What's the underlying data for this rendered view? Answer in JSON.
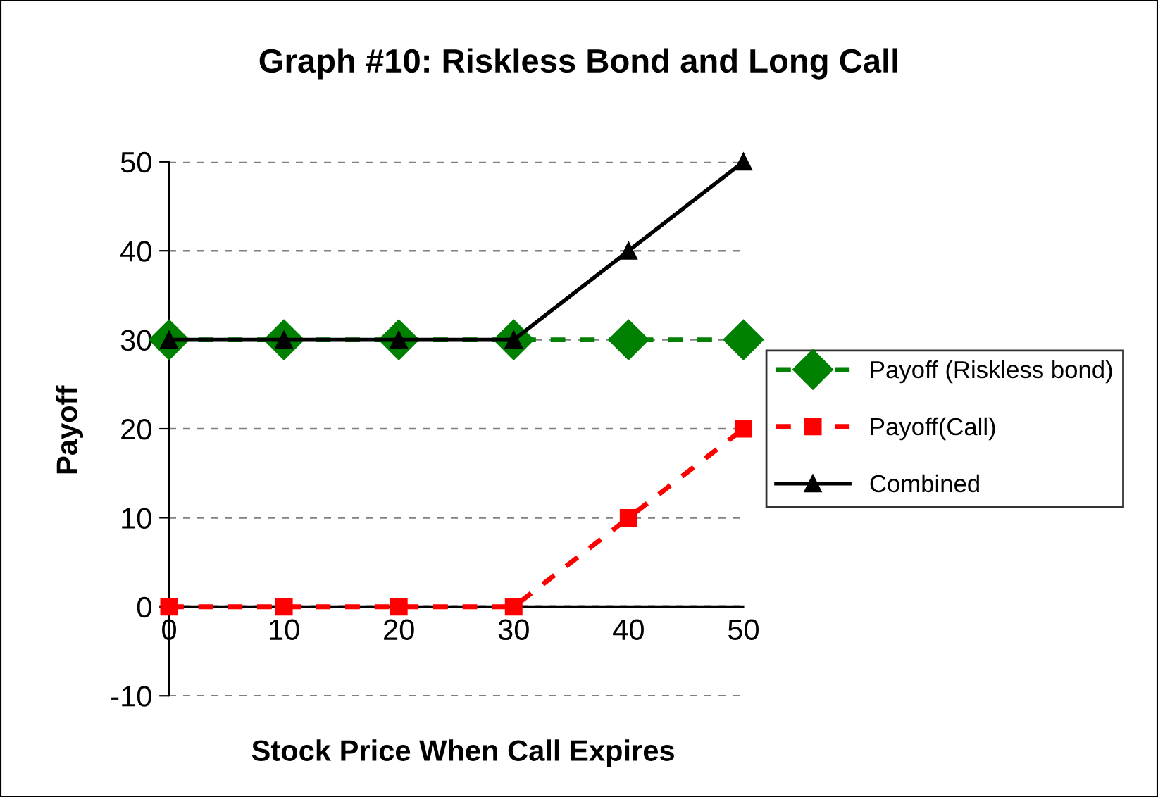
{
  "chart_data": {
    "type": "line",
    "title": "Graph #10: Riskless Bond and Long Call",
    "xlabel": "Stock Price When Call Expires",
    "ylabel": "Payoff",
    "categories": [
      "0",
      "10",
      "20",
      "30",
      "40",
      "50"
    ],
    "series": [
      {
        "name": "Payoff (Riskless bond)",
        "color": "#008000",
        "values": [
          30,
          30,
          30,
          30,
          30,
          30
        ],
        "marker": "diamond",
        "line_style": "dashed"
      },
      {
        "name": "Payoff(Call)",
        "color": "#ff0000",
        "values": [
          0,
          0,
          0,
          0,
          10,
          20
        ],
        "marker": "square",
        "line_style": "dashed"
      },
      {
        "name": "Combined",
        "color": "#000000",
        "values": [
          30,
          30,
          30,
          30,
          40,
          50
        ],
        "marker": "triangle",
        "line_style": "solid"
      }
    ],
    "ylim": [
      -10,
      50
    ],
    "yticks": [
      -10,
      0,
      10,
      20,
      30,
      40,
      50
    ],
    "grid": "y",
    "legend": "right"
  }
}
